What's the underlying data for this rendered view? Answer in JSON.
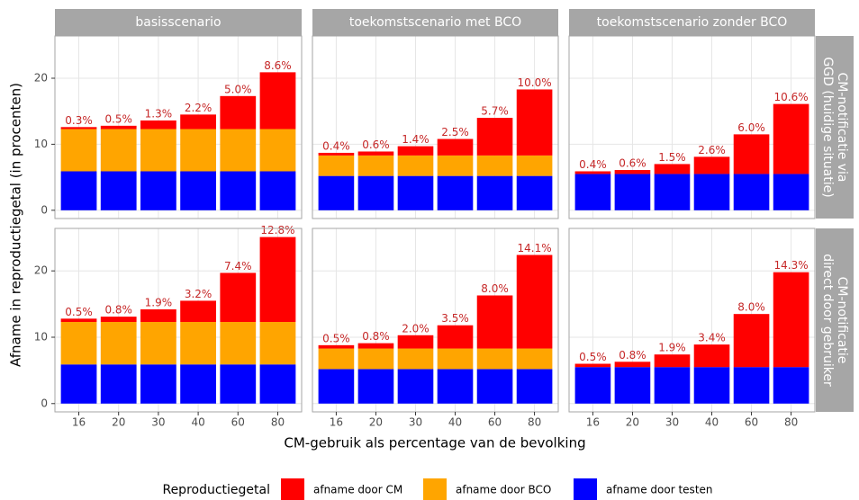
{
  "chart_data": {
    "type": "bar",
    "stacked": true,
    "xlabel": "CM-gebruik als percentage van de bevolking",
    "ylabel": "Afname in reproductiegetal (in procenten)",
    "legend_title": "Reproductiegetal",
    "column_titles": [
      "basisscenario",
      "toekomstscenario met BCO",
      "toekomstscenario zonder BCO"
    ],
    "row_titles": [
      "CM-notificatie via GGD (huidige situatie)",
      "CM-notificatie direct door gebruiker"
    ],
    "categories": [
      "16",
      "20",
      "30",
      "40",
      "60",
      "80"
    ],
    "ylim": [
      -1.25,
      26.4
    ],
    "yticks": [
      0,
      10,
      20
    ],
    "grid": true,
    "series": [
      {
        "name": "afname door CM",
        "color": "#ff0000"
      },
      {
        "name": "afname door BCO",
        "color": "#ffa500"
      },
      {
        "name": "afname door testen",
        "color": "#0000ff"
      }
    ],
    "panels": [
      {
        "series_values": [
          [
            0.3,
            0.5,
            1.3,
            2.2,
            5.0,
            8.6
          ],
          [
            6.4,
            6.4,
            6.4,
            6.4,
            6.4,
            6.4
          ],
          [
            5.9,
            5.9,
            5.9,
            5.9,
            5.9,
            5.9
          ]
        ],
        "value_labels": [
          "0.3%",
          "0.5%",
          "1.3%",
          "2.2%",
          "5.0%",
          "8.6%"
        ]
      },
      {
        "series_values": [
          [
            0.4,
            0.6,
            1.4,
            2.5,
            5.7,
            10.0
          ],
          [
            3.1,
            3.1,
            3.1,
            3.1,
            3.1,
            3.1
          ],
          [
            5.2,
            5.2,
            5.2,
            5.2,
            5.2,
            5.2
          ]
        ],
        "value_labels": [
          "0.4%",
          "0.6%",
          "1.4%",
          "2.5%",
          "5.7%",
          "10.0%"
        ]
      },
      {
        "series_values": [
          [
            0.4,
            0.6,
            1.5,
            2.6,
            6.0,
            10.6
          ],
          [
            0,
            0,
            0,
            0,
            0,
            0
          ],
          [
            5.5,
            5.5,
            5.5,
            5.5,
            5.5,
            5.5
          ]
        ],
        "value_labels": [
          "0.4%",
          "0.6%",
          "1.5%",
          "2.6%",
          "6.0%",
          "10.6%"
        ]
      },
      {
        "series_values": [
          [
            0.5,
            0.8,
            1.9,
            3.2,
            7.4,
            12.8
          ],
          [
            6.4,
            6.4,
            6.4,
            6.4,
            6.4,
            6.4
          ],
          [
            5.9,
            5.9,
            5.9,
            5.9,
            5.9,
            5.9
          ]
        ],
        "value_labels": [
          "0.5%",
          "0.8%",
          "1.9%",
          "3.2%",
          "7.4%",
          "12.8%"
        ]
      },
      {
        "series_values": [
          [
            0.5,
            0.8,
            2.0,
            3.5,
            8.0,
            14.1
          ],
          [
            3.1,
            3.1,
            3.1,
            3.1,
            3.1,
            3.1
          ],
          [
            5.2,
            5.2,
            5.2,
            5.2,
            5.2,
            5.2
          ]
        ],
        "value_labels": [
          "0.5%",
          "0.8%",
          "2.0%",
          "3.5%",
          "8.0%",
          "14.1%"
        ]
      },
      {
        "series_values": [
          [
            0.5,
            0.8,
            1.9,
            3.4,
            8.0,
            14.3
          ],
          [
            0,
            0,
            0,
            0,
            0,
            0
          ],
          [
            5.5,
            5.5,
            5.5,
            5.5,
            5.5,
            5.5
          ]
        ],
        "value_labels": [
          "0.5%",
          "0.8%",
          "1.9%",
          "3.4%",
          "8.0%",
          "14.3%"
        ]
      }
    ]
  }
}
